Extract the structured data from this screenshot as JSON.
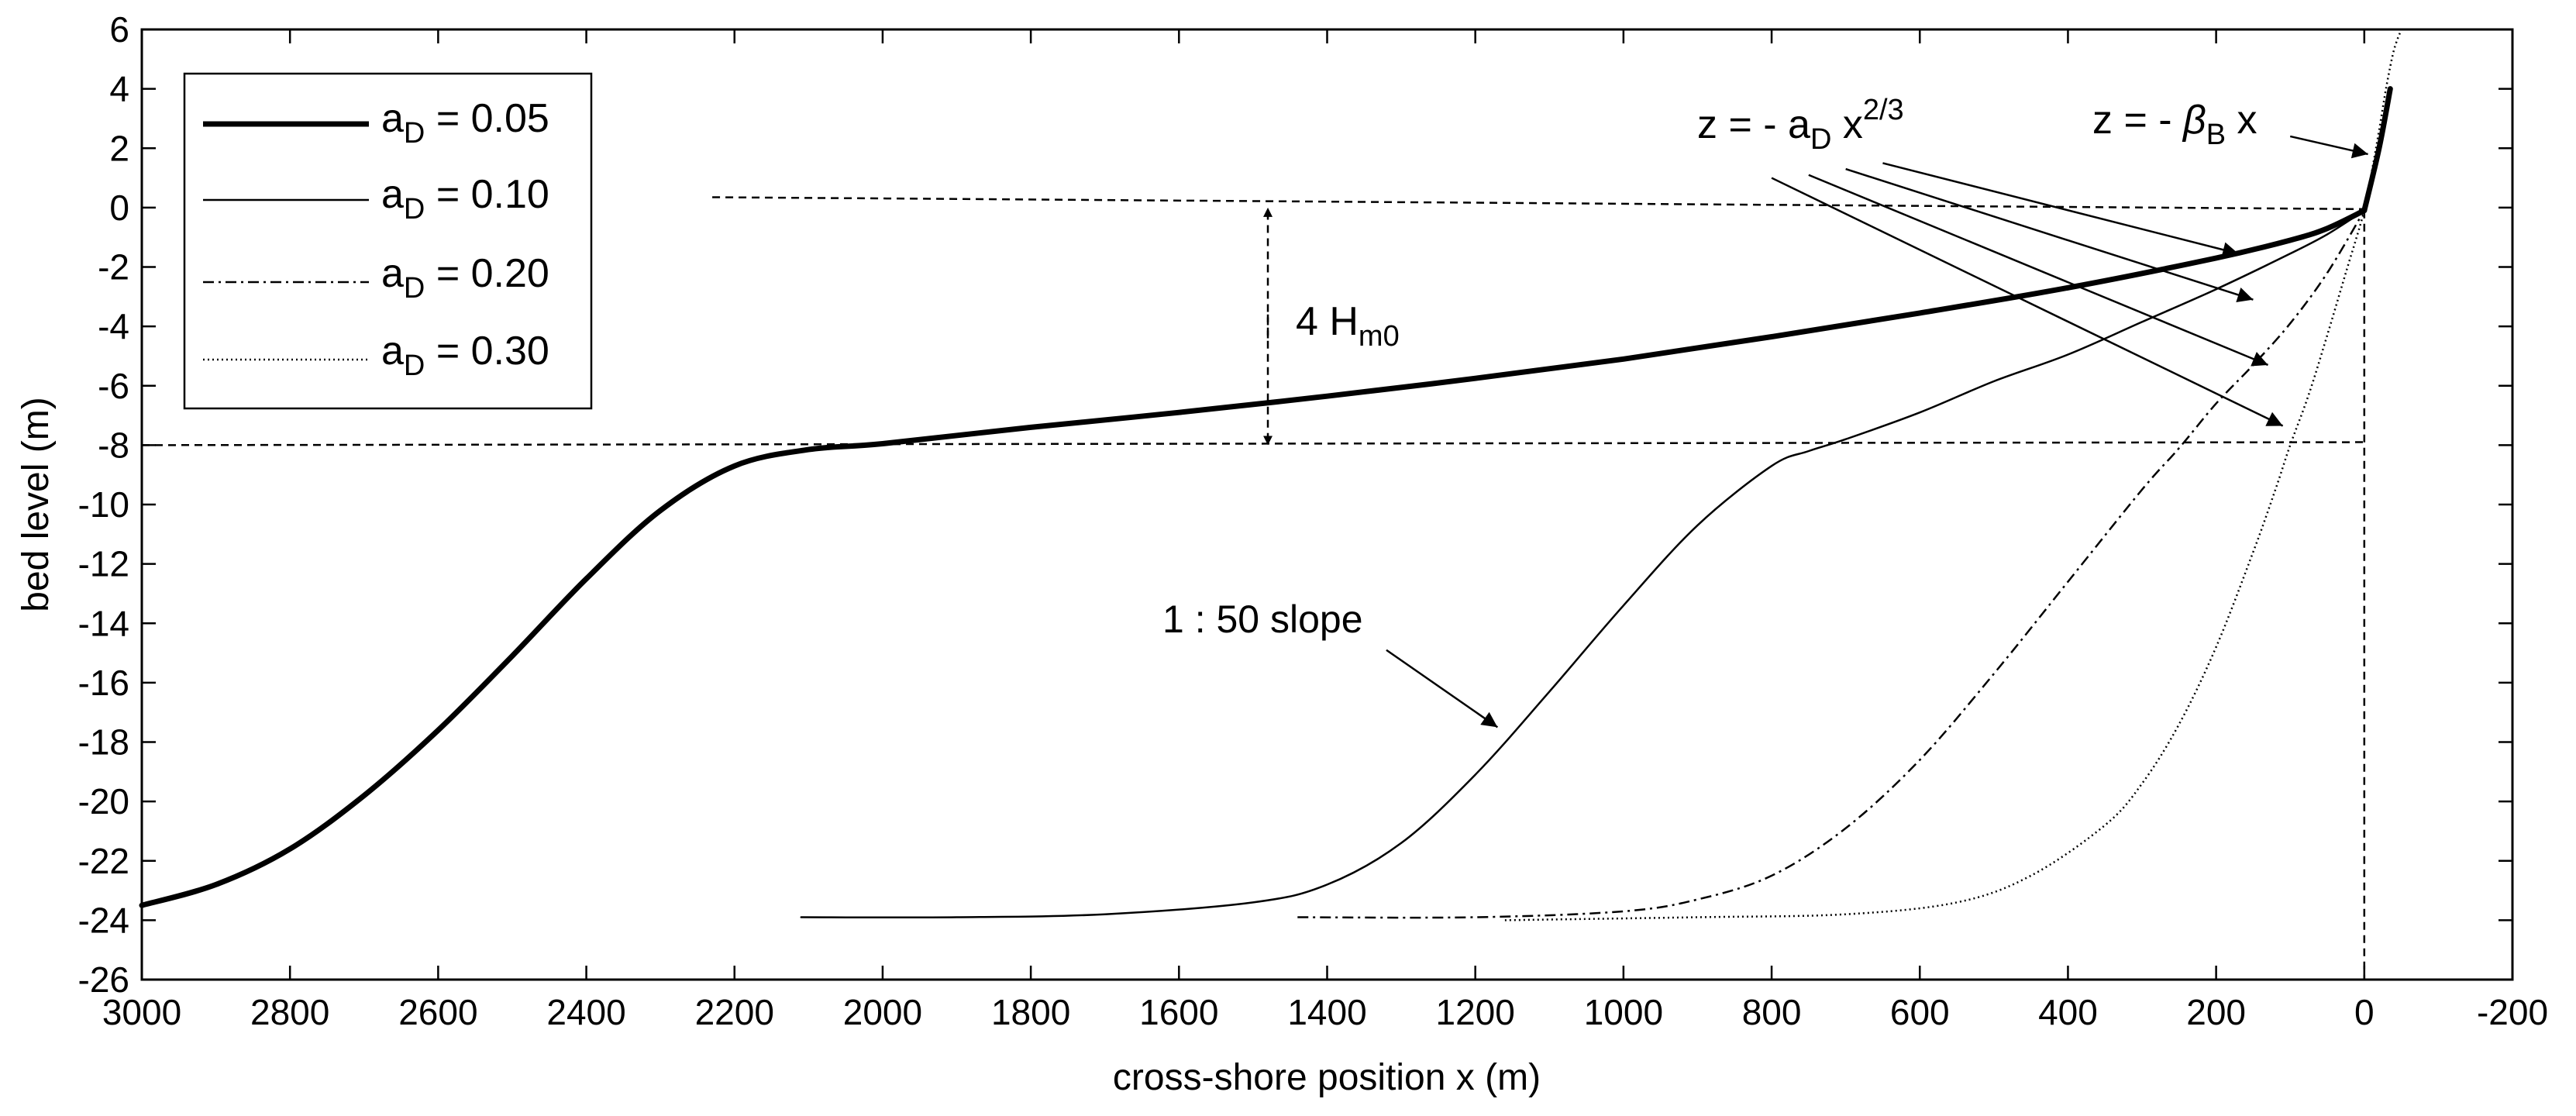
{
  "chart_data": {
    "type": "line",
    "title": "",
    "xlabel": "cross-shore position x (m)",
    "ylabel": "bed level (m)",
    "xlim": [
      3000,
      -200
    ],
    "ylim": [
      -26,
      6
    ],
    "grid": false,
    "legend_position": "top-left",
    "x_ticks": [
      "3000",
      "2800",
      "2600",
      "2400",
      "2200",
      "2000",
      "1800",
      "1600",
      "1400",
      "1200",
      "1000",
      "800",
      "600",
      "400",
      "200",
      "0",
      "-200"
    ],
    "y_ticks": [
      "6",
      "4",
      "2",
      "0",
      "-2",
      "-4",
      "-6",
      "-8",
      "-10",
      "-12",
      "-14",
      "-16",
      "-18",
      "-20",
      "-22",
      "-24",
      "-26"
    ],
    "series": [
      {
        "name": "a_D = 0.05",
        "legend_main": "a",
        "legend_sub": "D",
        "legend_value": " = 0.05",
        "style": "thick",
        "points": [
          [
            3000,
            -23.5
          ],
          [
            2900,
            -22.8
          ],
          [
            2800,
            -21.6
          ],
          [
            2700,
            -19.8
          ],
          [
            2600,
            -17.6
          ],
          [
            2500,
            -15.1
          ],
          [
            2400,
            -12.5
          ],
          [
            2300,
            -10.2
          ],
          [
            2200,
            -8.7
          ],
          [
            2100,
            -8.15
          ],
          [
            2000,
            -7.95
          ],
          [
            1800,
            -7.4
          ],
          [
            1600,
            -6.9
          ],
          [
            1400,
            -6.35
          ],
          [
            1200,
            -5.75
          ],
          [
            1000,
            -5.1
          ],
          [
            800,
            -4.35
          ],
          [
            600,
            -3.55
          ],
          [
            400,
            -2.7
          ],
          [
            200,
            -1.7
          ],
          [
            100,
            -1.1
          ],
          [
            50,
            -0.7
          ],
          [
            0,
            -0.1
          ]
        ]
      },
      {
        "name": "a_D = 0.10",
        "legend_main": "a",
        "legend_sub": "D",
        "legend_value": " = 0.10",
        "style": "solid",
        "points": [
          [
            2110,
            -23.9
          ],
          [
            1900,
            -23.9
          ],
          [
            1700,
            -23.8
          ],
          [
            1500,
            -23.4
          ],
          [
            1400,
            -22.8
          ],
          [
            1300,
            -21.4
          ],
          [
            1200,
            -19.1
          ],
          [
            1100,
            -16.3
          ],
          [
            1000,
            -13.4
          ],
          [
            900,
            -10.7
          ],
          [
            800,
            -8.7
          ],
          [
            750,
            -8.2
          ],
          [
            700,
            -7.8
          ],
          [
            600,
            -6.9
          ],
          [
            500,
            -5.85
          ],
          [
            400,
            -4.95
          ],
          [
            300,
            -3.85
          ],
          [
            200,
            -2.75
          ],
          [
            100,
            -1.55
          ],
          [
            50,
            -0.9
          ],
          [
            0,
            -0.1
          ]
        ]
      },
      {
        "name": "a_D = 0.20",
        "legend_main": "a",
        "legend_sub": "D",
        "legend_value": " = 0.20",
        "style": "dashdot",
        "points": [
          [
            1440,
            -23.9
          ],
          [
            1200,
            -23.9
          ],
          [
            1000,
            -23.7
          ],
          [
            900,
            -23.3
          ],
          [
            800,
            -22.5
          ],
          [
            700,
            -20.9
          ],
          [
            600,
            -18.6
          ],
          [
            500,
            -15.7
          ],
          [
            400,
            -12.6
          ],
          [
            300,
            -9.5
          ],
          [
            250,
            -8.1
          ],
          [
            200,
            -6.6
          ],
          [
            150,
            -5.3
          ],
          [
            100,
            -3.9
          ],
          [
            50,
            -2.2
          ],
          [
            0,
            -0.1
          ]
        ]
      },
      {
        "name": "a_D = 0.30",
        "legend_main": "a",
        "legend_sub": "D",
        "legend_value": " = 0.30",
        "style": "dotted",
        "points": [
          [
            1160,
            -24
          ],
          [
            900,
            -23.9
          ],
          [
            700,
            -23.8
          ],
          [
            550,
            -23.4
          ],
          [
            450,
            -22.5
          ],
          [
            350,
            -20.8
          ],
          [
            300,
            -19.4
          ],
          [
            250,
            -17.4
          ],
          [
            200,
            -14.8
          ],
          [
            150,
            -11.6
          ],
          [
            120,
            -9.5
          ],
          [
            100,
            -8.0
          ],
          [
            75,
            -6.3
          ],
          [
            50,
            -4.3
          ],
          [
            25,
            -2.2
          ],
          [
            0,
            -0.1
          ],
          [
            -10,
            1.2
          ],
          [
            -20,
            2.6
          ],
          [
            -30,
            4.1
          ],
          [
            -40,
            5.3
          ],
          [
            -50,
            6
          ]
        ]
      },
      {
        "name": "z = -beta_B x",
        "style": "thick",
        "points": [
          [
            0,
            -0.1
          ],
          [
            -20,
            2
          ],
          [
            -35,
            4
          ]
        ]
      }
    ],
    "reference_lines": [
      {
        "name": "upper-dashed",
        "points": [
          [
            2230,
            0.35
          ],
          [
            0,
            -0.05
          ]
        ]
      },
      {
        "name": "lower-dashed",
        "points": [
          [
            3000,
            -8.0
          ],
          [
            0,
            -7.9
          ]
        ]
      },
      {
        "name": "vertical-dashed",
        "points": [
          [
            0,
            -0.1
          ],
          [
            0,
            -26
          ]
        ]
      }
    ],
    "annotations": [
      {
        "name": "height-label",
        "text_main": "4 H",
        "text_sub": "m0"
      },
      {
        "name": "slope-label",
        "text": "1 : 50 slope"
      },
      {
        "name": "power-law-label",
        "text_main": "z = - a",
        "text_sub": "D",
        "text_var": " x",
        "text_sup": "2/3"
      },
      {
        "name": "linear-label",
        "text_main": "z = - ",
        "text_greek": "β",
        "text_sub": "B",
        "text_var": " x"
      }
    ],
    "arrows": [
      {
        "name": "height-arrow-up",
        "from": [
          1480,
          -4.4
        ],
        "to": [
          1480,
          0
        ]
      },
      {
        "name": "height-arrow-down",
        "from": [
          1480,
          -3.6
        ],
        "to": [
          1480,
          -8
        ]
      },
      {
        "name": "slope-arrow",
        "from": [
          1320,
          -14.9
        ],
        "to": [
          1170,
          -17.5
        ]
      },
      {
        "name": "power-arrow-1",
        "from": [
          650,
          1.5
        ],
        "to": [
          170,
          -1.55
        ]
      },
      {
        "name": "power-arrow-2",
        "from": [
          700,
          1.3
        ],
        "to": [
          150,
          -3.1
        ]
      },
      {
        "name": "power-arrow-3",
        "from": [
          750,
          1.1
        ],
        "to": [
          130,
          -5.3
        ]
      },
      {
        "name": "power-arrow-4",
        "from": [
          800,
          1.0
        ],
        "to": [
          110,
          -7.35
        ]
      },
      {
        "name": "linear-arrow",
        "from": [
          100,
          2.4
        ],
        "to": [
          -5,
          1.8
        ]
      }
    ]
  }
}
